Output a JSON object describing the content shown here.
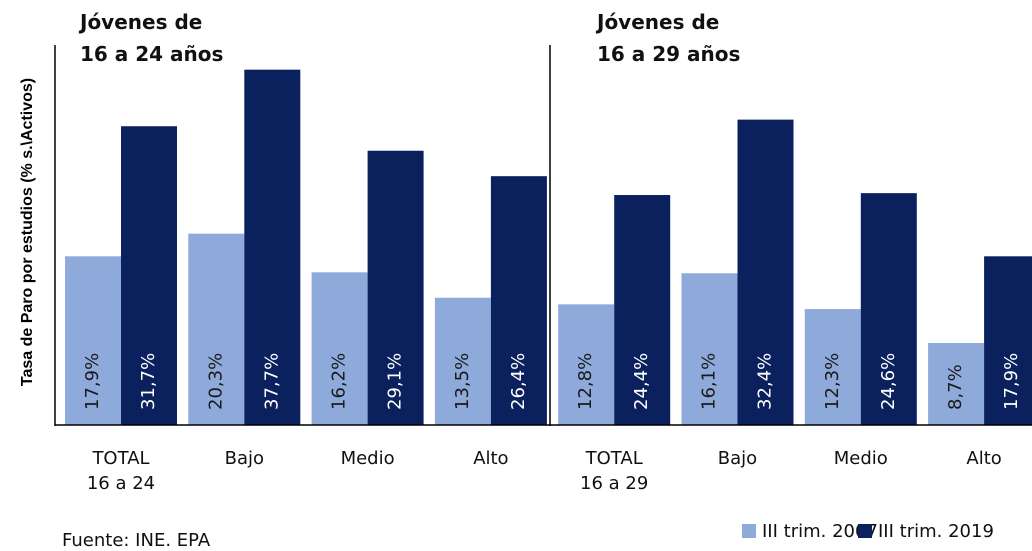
{
  "chart_data": {
    "type": "bar",
    "y_label": "Tasa de Paro por estudios (% s.\\Activos)",
    "annotations": [
      "Jóvenes de\n16 a 24 años",
      "Jóvenes de\n16 a 29 años"
    ],
    "categories": [
      "TOTAL\n16 a 24",
      "Bajo",
      "Medio",
      "Alto",
      "TOTAL\n16 a 29",
      "Bajo",
      "Medio",
      "Alto"
    ],
    "series": [
      {
        "name": "III trim. 2007",
        "color": "#8eaadb",
        "label_color": "#1a1a1a",
        "values": [
          17.9,
          20.3,
          16.2,
          13.5,
          12.8,
          16.1,
          12.3,
          8.7
        ],
        "value_labels": [
          "17,9%",
          "20,3%",
          "16,2%",
          "13,5%",
          "12,8%",
          "16,1%",
          "12,3%",
          "8,7%"
        ]
      },
      {
        "name": "III trim. 2019",
        "color": "#0b215e",
        "label_color": "#ffffff",
        "values": [
          31.7,
          37.7,
          29.1,
          26.4,
          24.4,
          32.4,
          24.6,
          17.9
        ],
        "value_labels": [
          "31,7%",
          "37,7%",
          "29,1%",
          "26,4%",
          "24,4%",
          "32,4%",
          "24,6%",
          "17,9%"
        ]
      }
    ],
    "ylim": [
      0,
      40
    ],
    "source": "Fuente: INE. EPA"
  }
}
